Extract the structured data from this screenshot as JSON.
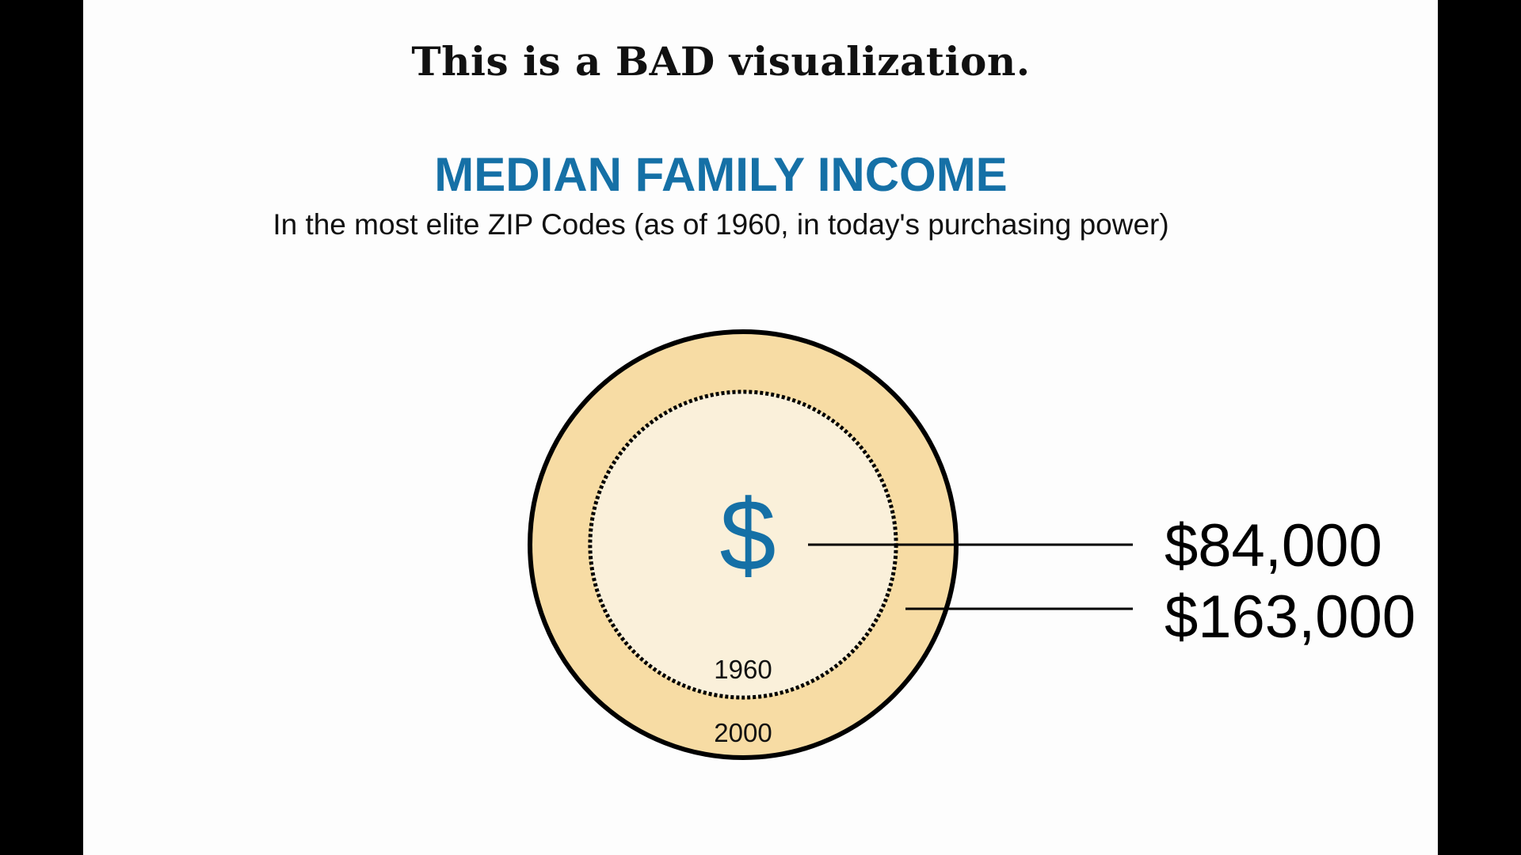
{
  "heading": "This is a BAD visualization.",
  "chart_data": {
    "type": "area",
    "title": "MEDIAN FAMILY INCOME",
    "subtitle": "In the most elite ZIP Codes (as of 1960, in today's purchasing power)",
    "symbol": "$",
    "series": [
      {
        "year": "1960",
        "value": 84000,
        "label": "$84,000"
      },
      {
        "year": "2000",
        "value": 163000,
        "label": "$163,000"
      }
    ]
  },
  "colors": {
    "title": "#1570a6",
    "outer_fill": "#f7dca4",
    "inner_fill": "#faf0da",
    "stroke": "#000000"
  }
}
